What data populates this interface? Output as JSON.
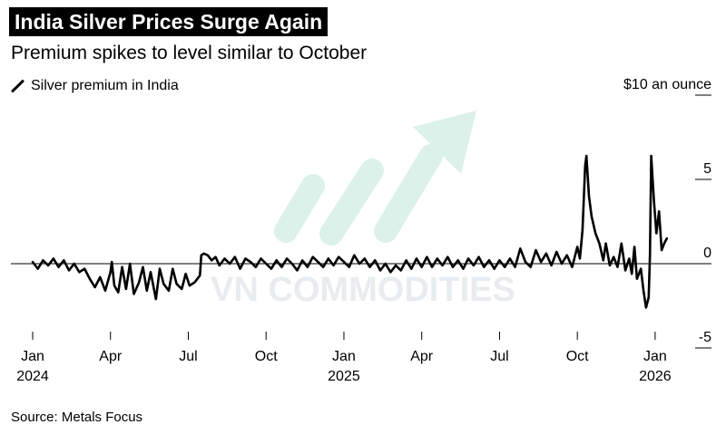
{
  "title": "India Silver Prices Surge Again",
  "subtitle": "Premium spikes to level similar to October",
  "legend": {
    "label": "Silver premium in India"
  },
  "source": "Source: Metals Focus",
  "watermark": {
    "text": "VN COMMODITIES",
    "color": "#cfe9df"
  },
  "chart_data": {
    "type": "line",
    "title": "India Silver Prices Surge Again",
    "subtitle": "Premium spikes to level similar to October",
    "xlabel": "",
    "ylabel": "$10 an ounce",
    "y_unit_label": "$10 an ounce",
    "ylim": [
      -6.5,
      13
    ],
    "y_ticks": [
      10,
      5,
      0,
      -5
    ],
    "y_tick_labels": [
      "$10 an ounce",
      "5",
      "0",
      "-5"
    ],
    "xlim": [
      0,
      24.6
    ],
    "x_ticks": [
      {
        "month": 0,
        "label": "Jan",
        "year": "2024"
      },
      {
        "month": 3,
        "label": "Apr",
        "year": ""
      },
      {
        "month": 6,
        "label": "Jul",
        "year": ""
      },
      {
        "month": 9,
        "label": "Oct",
        "year": ""
      },
      {
        "month": 12,
        "label": "Jan",
        "year": "2025"
      },
      {
        "month": 15,
        "label": "Apr",
        "year": ""
      },
      {
        "month": 18,
        "label": "Jul",
        "year": ""
      },
      {
        "month": 21,
        "label": "Oct",
        "year": ""
      },
      {
        "month": 24,
        "label": "Jan",
        "year": "2026"
      }
    ],
    "series": [
      {
        "name": "Silver premium in India",
        "color": "#000000",
        "x_unit": "months since Jan 2024",
        "points": [
          [
            0.0,
            0.1
          ],
          [
            0.2,
            -0.3
          ],
          [
            0.4,
            0.2
          ],
          [
            0.6,
            -0.1
          ],
          [
            0.8,
            0.3
          ],
          [
            1.0,
            -0.2
          ],
          [
            1.2,
            0.2
          ],
          [
            1.4,
            -0.4
          ],
          [
            1.6,
            0.0
          ],
          [
            1.8,
            -0.5
          ],
          [
            2.0,
            -0.3
          ],
          [
            2.2,
            -0.9
          ],
          [
            2.4,
            -1.4
          ],
          [
            2.6,
            -0.8
          ],
          [
            2.8,
            -1.6
          ],
          [
            3.0,
            -0.5
          ],
          [
            3.05,
            0.1
          ],
          [
            3.15,
            -1.3
          ],
          [
            3.3,
            -1.7
          ],
          [
            3.45,
            -0.2
          ],
          [
            3.6,
            -1.5
          ],
          [
            3.75,
            0.0
          ],
          [
            3.9,
            -1.8
          ],
          [
            4.1,
            -1.1
          ],
          [
            4.25,
            -0.2
          ],
          [
            4.4,
            -1.6
          ],
          [
            4.55,
            -0.5
          ],
          [
            4.75,
            -2.1
          ],
          [
            4.9,
            -0.3
          ],
          [
            5.05,
            -1.2
          ],
          [
            5.25,
            -1.6
          ],
          [
            5.4,
            -0.3
          ],
          [
            5.55,
            -1.2
          ],
          [
            5.75,
            -1.5
          ],
          [
            5.9,
            -0.6
          ],
          [
            6.05,
            -1.3
          ],
          [
            6.25,
            -1.1
          ],
          [
            6.35,
            -0.9
          ],
          [
            6.45,
            -0.7
          ],
          [
            6.5,
            0.5
          ],
          [
            6.6,
            0.6
          ],
          [
            6.75,
            0.5
          ],
          [
            6.9,
            0.2
          ],
          [
            7.05,
            0.4
          ],
          [
            7.2,
            -0.1
          ],
          [
            7.4,
            0.3
          ],
          [
            7.6,
            0.0
          ],
          [
            7.8,
            0.4
          ],
          [
            8.0,
            -0.3
          ],
          [
            8.2,
            0.3
          ],
          [
            8.4,
            0.1
          ],
          [
            8.6,
            -0.2
          ],
          [
            8.8,
            0.3
          ],
          [
            9.0,
            0.0
          ],
          [
            9.2,
            -0.3
          ],
          [
            9.4,
            0.2
          ],
          [
            9.6,
            -0.2
          ],
          [
            9.8,
            0.3
          ],
          [
            10.0,
            0.0
          ],
          [
            10.2,
            -0.4
          ],
          [
            10.4,
            0.2
          ],
          [
            10.6,
            -0.2
          ],
          [
            10.8,
            0.4
          ],
          [
            11.0,
            0.1
          ],
          [
            11.2,
            -0.2
          ],
          [
            11.4,
            0.3
          ],
          [
            11.6,
            -0.1
          ],
          [
            11.8,
            0.4
          ],
          [
            12.0,
            0.1
          ],
          [
            12.2,
            -0.2
          ],
          [
            12.4,
            0.5
          ],
          [
            12.6,
            0.0
          ],
          [
            12.8,
            0.3
          ],
          [
            13.0,
            -0.2
          ],
          [
            13.2,
            0.2
          ],
          [
            13.4,
            -0.4
          ],
          [
            13.6,
            0.0
          ],
          [
            13.8,
            -0.5
          ],
          [
            14.0,
            -0.1
          ],
          [
            14.2,
            -0.4
          ],
          [
            14.4,
            0.2
          ],
          [
            14.6,
            -0.3
          ],
          [
            14.8,
            0.3
          ],
          [
            15.0,
            -0.2
          ],
          [
            15.2,
            0.4
          ],
          [
            15.4,
            -0.2
          ],
          [
            15.6,
            0.3
          ],
          [
            15.8,
            -0.1
          ],
          [
            16.0,
            0.4
          ],
          [
            16.2,
            -0.2
          ],
          [
            16.4,
            0.2
          ],
          [
            16.6,
            -0.3
          ],
          [
            16.8,
            0.3
          ],
          [
            17.0,
            -0.1
          ],
          [
            17.2,
            0.4
          ],
          [
            17.4,
            -0.2
          ],
          [
            17.6,
            0.2
          ],
          [
            17.8,
            -0.3
          ],
          [
            18.0,
            0.2
          ],
          [
            18.2,
            -0.2
          ],
          [
            18.4,
            0.3
          ],
          [
            18.6,
            -0.2
          ],
          [
            18.8,
            0.9
          ],
          [
            19.0,
            0.1
          ],
          [
            19.2,
            -0.2
          ],
          [
            19.4,
            0.8
          ],
          [
            19.6,
            0.1
          ],
          [
            19.8,
            0.6
          ],
          [
            20.0,
            -0.1
          ],
          [
            20.2,
            0.7
          ],
          [
            20.4,
            0.0
          ],
          [
            20.6,
            0.5
          ],
          [
            20.8,
            -0.2
          ],
          [
            21.0,
            1.0
          ],
          [
            21.1,
            0.3
          ],
          [
            21.2,
            2.0
          ],
          [
            21.3,
            5.8
          ],
          [
            21.35,
            6.4
          ],
          [
            21.45,
            4.0
          ],
          [
            21.55,
            2.8
          ],
          [
            21.7,
            1.8
          ],
          [
            21.85,
            1.2
          ],
          [
            22.0,
            0.2
          ],
          [
            22.1,
            1.2
          ],
          [
            22.25,
            -0.1
          ],
          [
            22.4,
            0.4
          ],
          [
            22.55,
            -0.2
          ],
          [
            22.7,
            1.2
          ],
          [
            22.85,
            -0.4
          ],
          [
            23.0,
            0.3
          ],
          [
            23.1,
            -0.6
          ],
          [
            23.2,
            1.0
          ],
          [
            23.3,
            -0.9
          ],
          [
            23.45,
            -0.3
          ],
          [
            23.55,
            -1.6
          ],
          [
            23.65,
            -2.6
          ],
          [
            23.75,
            -2.0
          ],
          [
            23.8,
            0.5
          ],
          [
            23.85,
            6.4
          ],
          [
            23.95,
            3.8
          ],
          [
            24.05,
            1.8
          ],
          [
            24.15,
            3.1
          ],
          [
            24.25,
            0.8
          ],
          [
            24.35,
            1.2
          ],
          [
            24.45,
            1.5
          ]
        ]
      }
    ]
  }
}
